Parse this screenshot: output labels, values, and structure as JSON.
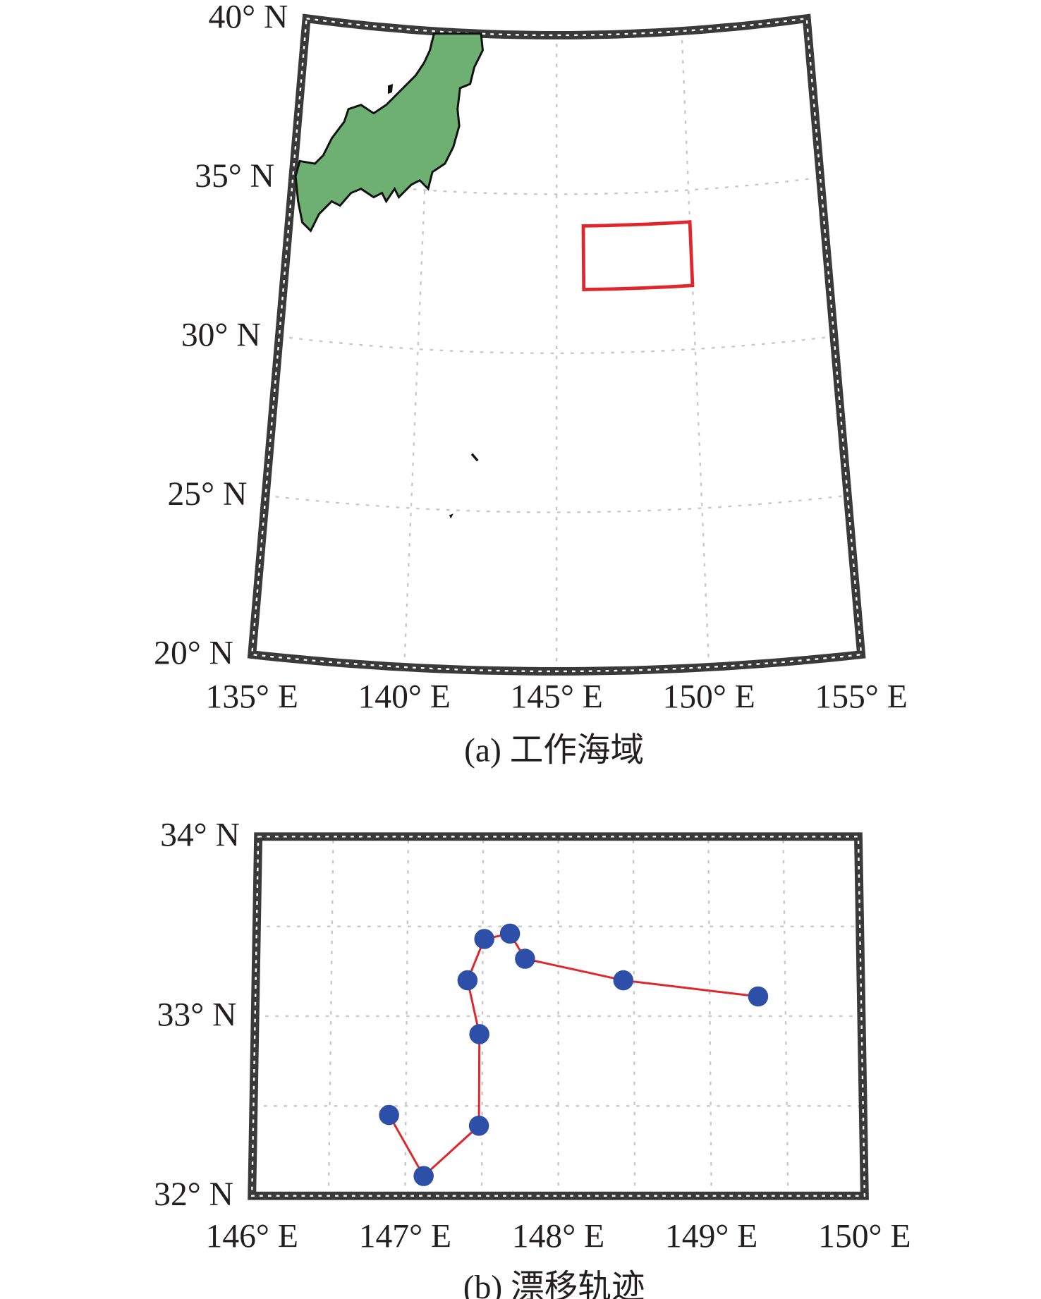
{
  "chart_data": [
    {
      "type": "map",
      "caption": "(a) 工作海域",
      "xlim": [
        135,
        155
      ],
      "ylim": [
        20,
        40
      ],
      "xticks": [
        {
          "value": 135,
          "label": "135° E"
        },
        {
          "value": 140,
          "label": "140° E"
        },
        {
          "value": 145,
          "label": "145° E"
        },
        {
          "value": 150,
          "label": "150° E"
        },
        {
          "value": 155,
          "label": "155° E"
        }
      ],
      "yticks": [
        {
          "value": 20,
          "label": "20° N"
        },
        {
          "value": 25,
          "label": "25° N"
        },
        {
          "value": 30,
          "label": "30° N"
        },
        {
          "value": 35,
          "label": "35° N"
        },
        {
          "value": 40,
          "label": "40° N"
        }
      ],
      "grid": true,
      "region": {
        "lon": [
          146,
          150
        ],
        "lat": [
          32,
          34
        ],
        "color": "#e0262b"
      },
      "land_color": "#6db071"
    },
    {
      "type": "trajectory",
      "caption": "(b) 漂移轨迹",
      "xlim": [
        146,
        150
      ],
      "ylim": [
        32,
        34
      ],
      "xticks": [
        {
          "value": 146,
          "label": "146° E"
        },
        {
          "value": 147,
          "label": "147° E"
        },
        {
          "value": 148,
          "label": "148° E"
        },
        {
          "value": 149,
          "label": "149° E"
        },
        {
          "value": 150,
          "label": "150° E"
        }
      ],
      "yticks": [
        {
          "value": 32,
          "label": "32° N"
        },
        {
          "value": 33,
          "label": "33° N"
        },
        {
          "value": 34,
          "label": "34° N"
        }
      ],
      "minor_xticks": [
        146.5,
        147.5,
        148.5,
        149.5
      ],
      "minor_yticks": [
        32.5,
        33.5
      ],
      "grid": true,
      "lon": [
        146.89,
        147.12,
        147.48,
        147.48,
        147.4,
        147.51,
        147.68,
        147.78,
        148.43,
        149.32
      ],
      "lat": [
        32.45,
        32.11,
        32.39,
        32.9,
        33.2,
        33.43,
        33.46,
        33.32,
        33.2,
        33.11
      ],
      "line_color": "#e0262b",
      "marker_color": "#2e4fa8"
    }
  ]
}
